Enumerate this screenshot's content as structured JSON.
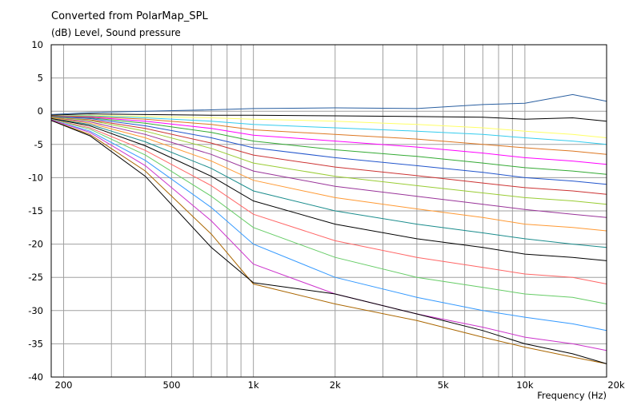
{
  "chart_data": {
    "type": "line",
    "title": "Converted from PolarMap_SPL",
    "ylabel": "(dB)  Level, Sound pressure",
    "xlabel": "Frequency  (Hz)",
    "x_scale": "log",
    "xlim": [
      180,
      20000
    ],
    "ylim": [
      -40,
      10
    ],
    "grid": true,
    "legend": "none",
    "y_ticks": [
      "10",
      "5",
      "0",
      "-5",
      "-10",
      "-15",
      "-20",
      "-25",
      "-30",
      "-35",
      "-40"
    ],
    "x_ticks": [
      {
        "value": 200,
        "label": "200"
      },
      {
        "value": 500,
        "label": "500"
      },
      {
        "value": 1000,
        "label": "1k"
      },
      {
        "value": 2000,
        "label": "2k"
      },
      {
        "value": 5000,
        "label": "5k"
      },
      {
        "value": 10000,
        "label": "10k"
      },
      {
        "value": 20000,
        "label": "20k"
      }
    ],
    "x": [
      180,
      250,
      400,
      700,
      1000,
      2000,
      4000,
      7000,
      10000,
      15000,
      20000
    ],
    "series": [
      {
        "color": "#2a5fa0",
        "values": [
          -0.5,
          -0.2,
          0.0,
          0.2,
          0.4,
          0.5,
          0.4,
          1.0,
          1.2,
          2.5,
          1.5
        ]
      },
      {
        "color": "#000000",
        "values": [
          -0.6,
          -0.4,
          -0.5,
          -0.6,
          -0.6,
          -0.7,
          -0.8,
          -0.9,
          -1.2,
          -1.0,
          -1.5
        ]
      },
      {
        "color": "#ffff66",
        "values": [
          -0.7,
          -0.6,
          -0.8,
          -1.0,
          -1.2,
          -1.5,
          -2.0,
          -2.5,
          -3.0,
          -3.5,
          -4.0
        ]
      },
      {
        "color": "#33ccee",
        "values": [
          -0.7,
          -0.7,
          -1.0,
          -1.5,
          -2.0,
          -2.5,
          -3.0,
          -3.5,
          -4.0,
          -4.5,
          -5.0
        ]
      },
      {
        "color": "#dd7722",
        "values": [
          -0.7,
          -0.8,
          -1.2,
          -2.0,
          -2.8,
          -3.5,
          -4.2,
          -5.0,
          -5.5,
          -6.0,
          -6.5
        ]
      },
      {
        "color": "#ff00ff",
        "values": [
          -0.8,
          -0.9,
          -1.5,
          -2.6,
          -3.6,
          -4.5,
          -5.4,
          -6.3,
          -7.0,
          -7.5,
          -8.0
        ]
      },
      {
        "color": "#33aa33",
        "values": [
          -0.8,
          -1.0,
          -1.8,
          -3.2,
          -4.5,
          -5.8,
          -6.8,
          -7.8,
          -8.5,
          -9.0,
          -9.5
        ]
      },
      {
        "color": "#2255cc",
        "values": [
          -0.8,
          -1.1,
          -2.2,
          -4.0,
          -5.5,
          -7.0,
          -8.2,
          -9.2,
          -10.0,
          -10.5,
          -11.0
        ]
      },
      {
        "color": "#cc3333",
        "values": [
          -0.9,
          -1.3,
          -2.6,
          -4.8,
          -6.6,
          -8.4,
          -9.7,
          -10.8,
          -11.5,
          -12.0,
          -12.5
        ]
      },
      {
        "color": "#99cc33",
        "values": [
          -0.9,
          -1.4,
          -3.0,
          -5.6,
          -7.8,
          -9.8,
          -11.2,
          -12.3,
          -13.0,
          -13.5,
          -14.0
        ]
      },
      {
        "color": "#993399",
        "values": [
          -1.0,
          -1.6,
          -3.5,
          -6.5,
          -9.0,
          -11.3,
          -12.8,
          -14.0,
          -14.8,
          -15.5,
          -16.0
        ]
      },
      {
        "color": "#ff9933",
        "values": [
          -1.0,
          -1.8,
          -4.0,
          -7.5,
          -10.4,
          -13.0,
          -14.7,
          -16.0,
          -17.0,
          -17.5,
          -18.0
        ]
      },
      {
        "color": "#1a8c8c",
        "values": [
          -1.1,
          -2.0,
          -4.6,
          -8.6,
          -12.0,
          -15.0,
          -17.0,
          -18.3,
          -19.2,
          -20.0,
          -20.5
        ]
      },
      {
        "color": "#000000",
        "values": [
          -1.1,
          -2.2,
          -5.2,
          -9.8,
          -13.5,
          -17.0,
          -19.2,
          -20.5,
          -21.5,
          -22.0,
          -22.5
        ]
      },
      {
        "color": "#ff6666",
        "values": [
          -1.2,
          -2.5,
          -5.9,
          -11.2,
          -15.5,
          -19.5,
          -22.0,
          -23.5,
          -24.5,
          -25.0,
          -26.0
        ]
      },
      {
        "color": "#66cc66",
        "values": [
          -1.2,
          -2.7,
          -6.6,
          -12.8,
          -17.5,
          -22.0,
          -25.0,
          -26.5,
          -27.5,
          -28.0,
          -29.0
        ]
      },
      {
        "color": "#3399ff",
        "values": [
          -1.3,
          -3.0,
          -7.4,
          -14.5,
          -20.0,
          -25.0,
          -28.0,
          -30.0,
          -31.0,
          -32.0,
          -33.0
        ]
      },
      {
        "color": "#cc33cc",
        "values": [
          -1.3,
          -3.2,
          -8.2,
          -16.5,
          -23.0,
          -27.5,
          -30.5,
          -32.5,
          -34.0,
          -35.0,
          -36.0
        ]
      },
      {
        "color": "#aa6600",
        "values": [
          -1.4,
          -3.5,
          -9.0,
          -18.5,
          -26.0,
          -29.0,
          -31.5,
          -34.0,
          -35.5,
          -37.0,
          -38.0
        ]
      },
      {
        "color": "#000000",
        "values": [
          -1.4,
          -3.7,
          -9.8,
          -20.5,
          -25.8,
          -27.5,
          -30.5,
          -33.0,
          -35.0,
          -36.5,
          -38.0
        ]
      }
    ]
  }
}
